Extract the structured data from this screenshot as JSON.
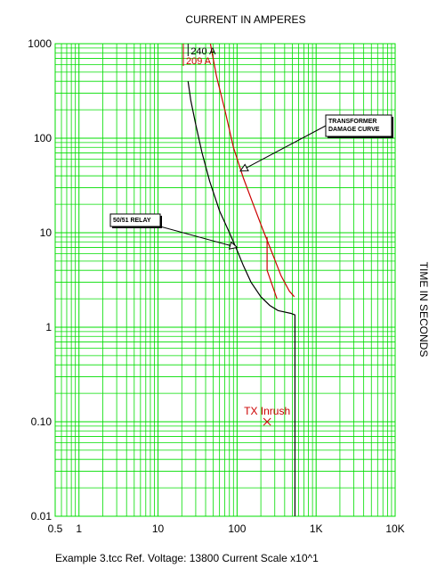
{
  "chart_data": {
    "type": "line",
    "title": "CURRENT IN AMPERES",
    "xlabel": "",
    "ylabel": "TIME IN SECONDS",
    "x_scale": "log",
    "y_scale": "log",
    "xlim": [
      0.5,
      10000
    ],
    "ylim": [
      0.01,
      1000
    ],
    "grid": true,
    "grid_color": "#00dd00",
    "x_tick_labels": [
      {
        "value": 0.5,
        "label": "0.5"
      },
      {
        "value": 1,
        "label": "1"
      },
      {
        "value": 10,
        "label": "10"
      },
      {
        "value": 100,
        "label": "100"
      },
      {
        "value": 1000,
        "label": "1K"
      },
      {
        "value": 10000,
        "label": "10K"
      }
    ],
    "y_tick_labels": [
      {
        "value": 1000,
        "label": "1000"
      },
      {
        "value": 100,
        "label": "100"
      },
      {
        "value": 10,
        "label": "10"
      },
      {
        "value": 1,
        "label": "1"
      },
      {
        "value": 0.1,
        "label": "0.10"
      },
      {
        "value": 0.01,
        "label": "0.01"
      }
    ],
    "series": [
      {
        "id": "relay",
        "color": "#000000",
        "x": [
          24,
          26,
          30,
          36,
          45,
          60,
          80,
          100,
          120,
          150,
          200,
          260,
          330,
          400,
          480,
          540,
          540
        ],
        "y": [
          400,
          250,
          140,
          70,
          35,
          17,
          10,
          6.5,
          4.5,
          3,
          2.1,
          1.7,
          1.5,
          1.45,
          1.4,
          1.35,
          0.01
        ]
      },
      {
        "id": "transformer_damage",
        "color": "#cc0000",
        "x": [
          46,
          55,
          70,
          90,
          120,
          160,
          210,
          280,
          360,
          460,
          530
        ],
        "y": [
          1000,
          450,
          200,
          80,
          38,
          20,
          11,
          6,
          3.5,
          2.4,
          2.1
        ]
      },
      {
        "id": "transformer_damage_lower",
        "color": "#cc0000",
        "x": [
          240,
          240,
          320
        ],
        "y": [
          9,
          4,
          2
        ]
      }
    ],
    "points": [
      {
        "label": "TX Inrush",
        "x": 240,
        "y": 0.1,
        "color": "#cc0000",
        "marker": "x"
      }
    ],
    "annotations": [
      {
        "text": "TRANSFORMER DAMAGE CURVE",
        "lines": [
          "TRANSFORMER",
          "DAMAGE CURVE"
        ],
        "target_x": 110,
        "target_y": 45
      },
      {
        "text": "50/51 RELAY",
        "lines": [
          "50/51 RELAY"
        ],
        "target_x": 100,
        "target_y": 7
      }
    ],
    "pickup_labels": [
      {
        "text": "240 A",
        "x": 24,
        "color": "#000000"
      },
      {
        "text": "209 A",
        "x": 20.9,
        "color": "#cc0000"
      }
    ],
    "footer": "Example 3.tcc   Ref. Voltage: 13800   Current Scale x10^1"
  }
}
